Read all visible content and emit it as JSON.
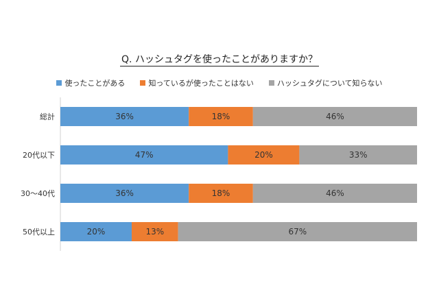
{
  "chart_data": {
    "type": "bar",
    "orientation": "horizontal",
    "stacked": true,
    "title": "Q.  ハッシュタグを使ったことがありますか？",
    "categories": [
      "総計",
      "20代以下",
      "30～40代",
      "50代以上"
    ],
    "series": [
      {
        "name": "使ったことがある",
        "values": [
          36,
          47,
          36,
          20
        ],
        "color": "#5b9bd5"
      },
      {
        "name": "知っているが使ったことはない",
        "values": [
          18,
          20,
          18,
          13
        ],
        "color": "#ed7d31"
      },
      {
        "name": "ハッシュタグについて知らない",
        "values": [
          46,
          33,
          46,
          67
        ],
        "color": "#a5a5a5"
      }
    ],
    "value_suffix": "%",
    "xlim": [
      0,
      100
    ],
    "legend_position": "top",
    "grid": false
  }
}
